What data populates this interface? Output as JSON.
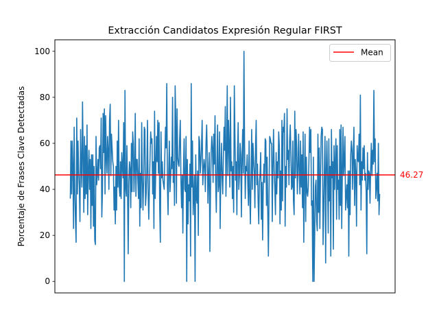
{
  "chart_data": {
    "type": "line",
    "title": "Extracción Candidatos Expresión Regular FIRST",
    "xlabel": "",
    "ylabel": "Porcentaje de Frases Clave Detectadas",
    "ylim": [
      -5,
      105
    ],
    "yticks": [
      0,
      20,
      40,
      60,
      80,
      100
    ],
    "x_ticks_shown": false,
    "grid": false,
    "legend": {
      "entries": [
        "Mean"
      ],
      "placement": "top-right"
    },
    "series": [
      {
        "color": "#1f77b4",
        "values": [
          36,
          61,
          38,
          61,
          50,
          23,
          67,
          40,
          27,
          17,
          71,
          38,
          61,
          48,
          41,
          26,
          66,
          50,
          41,
          78,
          55,
          30,
          63,
          36,
          59,
          38,
          68,
          29,
          48,
          57,
          40,
          53,
          23,
          55,
          33,
          55,
          24,
          50,
          18,
          16,
          63,
          42,
          46,
          53,
          44,
          58,
          59,
          49,
          71,
          28,
          39,
          73,
          56,
          75,
          38,
          72,
          54,
          47,
          63,
          57,
          40,
          70,
          77,
          46,
          64,
          58,
          52,
          50,
          31,
          41,
          25,
          50,
          31,
          61,
          41,
          70,
          42,
          37,
          52,
          36,
          56,
          50,
          45,
          69,
          0,
          83,
          41,
          37,
          59,
          40,
          12,
          43,
          52,
          49,
          32,
          60,
          39,
          65,
          60,
          39,
          49,
          73,
          37,
          53,
          53,
          44,
          36,
          62,
          24,
          47,
          32,
          69,
          45,
          31,
          43,
          67,
          66,
          33,
          38,
          48,
          70,
          39,
          27,
          41,
          54,
          65,
          60,
          62,
          38,
          52,
          23,
          74,
          36,
          50,
          63,
          52,
          70,
          47,
          69,
          32,
          17,
          65,
          45,
          52,
          44,
          42,
          40,
          55,
          67,
          58,
          86,
          42,
          29,
          48,
          61,
          39,
          45,
          54,
          49,
          80,
          43,
          52,
          33,
          85,
          70,
          34,
          75,
          54,
          51,
          50,
          62,
          70,
          44,
          32,
          46,
          21,
          49,
          62,
          40,
          39,
          63,
          0,
          53,
          25,
          42,
          35,
          51,
          11,
          86,
          41,
          61,
          29,
          38,
          46,
          0,
          55,
          36,
          34,
          48,
          20,
          63,
          61,
          47,
          52,
          59,
          70,
          42,
          48,
          53,
          50,
          39,
          60,
          68,
          55,
          34,
          47,
          56,
          13,
          40,
          56,
          63,
          58,
          43,
          64,
          51,
          72,
          44,
          30,
          51,
          68,
          39,
          42,
          65,
          23,
          48,
          60,
          45,
          38,
          54,
          67,
          57,
          76,
          37,
          55,
          85,
          46,
          70,
          59,
          41,
          80,
          48,
          52,
          36,
          50,
          30,
          85,
          63,
          44,
          52,
          29,
          56,
          69,
          40,
          46,
          60,
          55,
          28,
          53,
          66,
          47,
          100,
          58,
          36,
          50,
          48,
          55,
          42,
          33,
          61,
          38,
          25,
          45,
          66,
          40,
          60,
          53,
          47,
          32,
          59,
          70,
          42,
          51,
          35,
          25,
          43,
          47,
          56,
          27,
          43,
          18,
          41,
          51,
          43,
          62,
          61,
          33,
          54,
          30,
          11,
          38,
          63,
          62,
          60,
          60,
          26,
          51,
          66,
          48,
          40,
          29,
          56,
          38,
          52,
          45,
          65,
          59,
          25,
          48,
          31,
          70,
          35,
          67,
          65,
          73,
          24,
          50,
          41,
          75,
          53,
          57,
          42,
          61,
          68,
          56,
          40,
          41,
          61,
          35,
          29,
          74,
          45,
          66,
          58,
          38,
          49,
          64,
          47,
          38,
          61,
          41,
          55,
          32,
          65,
          17,
          44,
          64,
          26,
          54,
          39,
          37,
          41,
          52,
          67,
          56,
          66,
          33,
          35,
          0,
          54,
          0,
          20,
          41,
          44,
          26,
          22,
          64,
          30,
          58,
          23,
          45,
          63,
          67,
          66,
          16,
          31,
          48,
          63,
          8,
          49,
          61,
          43,
          21,
          62,
          35,
          50,
          11,
          66,
          45,
          52,
          14,
          59,
          40,
          52,
          62,
          27,
          59,
          40,
          44,
          27,
          66,
          33,
          68,
          23,
          48,
          67,
          46,
          52,
          63,
          31,
          37,
          42,
          32,
          48,
          11,
          48,
          29,
          55,
          61,
          57,
          40,
          56,
          67,
          33,
          53,
          47,
          24,
          59,
          53,
          52,
          64,
          42,
          81,
          31,
          52,
          44,
          58,
          49,
          59,
          44,
          47,
          39,
          12,
          56,
          40,
          48,
          47,
          34,
          49,
          60,
          46,
          57,
          51,
          83,
          52,
          62,
          36,
          41,
          47,
          35,
          60,
          29,
          38
        ]
      },
      {
        "name": "Mean",
        "color": "#ff0000",
        "value": 46.27,
        "label": "46.27"
      }
    ]
  }
}
